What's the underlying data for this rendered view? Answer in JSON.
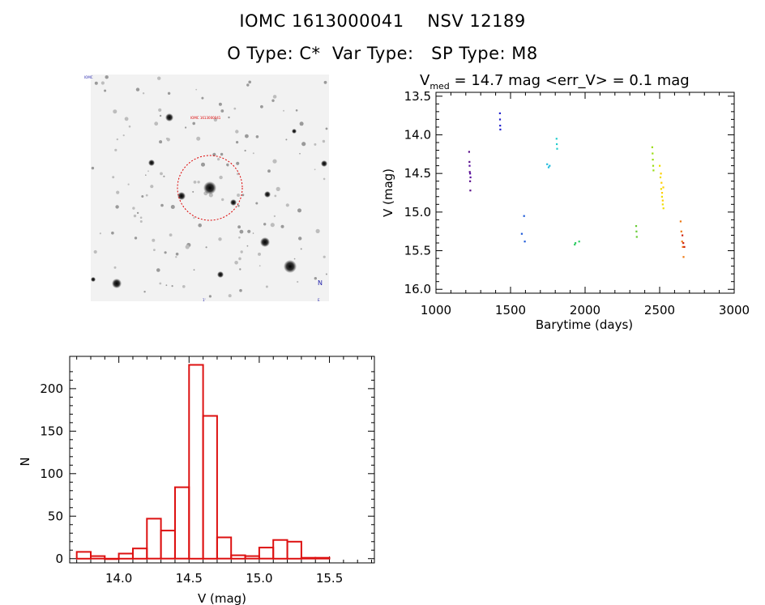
{
  "header": {
    "title_line1": "IOMC 1613000041    NSV 12189",
    "title_line2": "O Type: C*  Var Type:   SP Type: M8"
  },
  "finder_chart": {
    "target_label": "IOMC 1613000041",
    "corner_labels": [
      "IOMC",
      "N",
      "E",
      "1'"
    ]
  },
  "colors": {
    "histogram": "#dd1111",
    "circle": "#dd0000",
    "axis": "#000000"
  },
  "chart_data": [
    {
      "type": "scatter",
      "name": "light-curve",
      "title_prefix": "V",
      "title_subscript": "med",
      "title_rest": " = 14.7 mag <err_V> = 0.1 mag",
      "xlabel": "Barytime (days)",
      "ylabel": "V (mag)",
      "xlim": [
        1000,
        3000
      ],
      "ylim": [
        16.05,
        13.45
      ],
      "xticks": [
        1000,
        1500,
        2000,
        2500,
        3000
      ],
      "yticks": [
        13.5,
        14.0,
        14.5,
        15.0,
        15.5,
        16.0
      ],
      "ytick_labels": [
        "13.5",
        "14.0",
        "14.5",
        "15.0",
        "15.5",
        "16.0"
      ],
      "groups": [
        {
          "color": "#5a0f8a",
          "x": [
            1222,
            1224,
            1226,
            1228,
            1230
          ],
          "y": [
            14.22,
            14.35,
            14.48,
            14.6,
            14.72
          ]
        },
        {
          "color": "#5a0fa0",
          "x": [
            1225,
            1228,
            1231
          ],
          "y": [
            14.4,
            14.5,
            14.55
          ]
        },
        {
          "color": "#2222cc",
          "x": [
            1428,
            1429,
            1430,
            1431
          ],
          "y": [
            13.72,
            13.8,
            13.88,
            13.93
          ]
        },
        {
          "color": "#1e5ad8",
          "x": [
            1575,
            1590,
            1595
          ],
          "y": [
            15.28,
            15.05,
            15.38
          ]
        },
        {
          "color": "#22bbdd",
          "x": [
            1745,
            1755,
            1762
          ],
          "y": [
            14.38,
            14.42,
            14.4
          ]
        },
        {
          "color": "#22cccc",
          "x": [
            1808,
            1810,
            1812
          ],
          "y": [
            14.05,
            14.12,
            14.18
          ]
        },
        {
          "color": "#33cc66",
          "x": [
            1930,
            1935,
            1960
          ],
          "y": [
            15.42,
            15.4,
            15.38
          ]
        },
        {
          "color": "#66cc33",
          "x": [
            2342,
            2344,
            2346
          ],
          "y": [
            15.18,
            15.25,
            15.32
          ]
        },
        {
          "color": "#99dd11",
          "x": [
            2450,
            2452,
            2454,
            2456,
            2458
          ],
          "y": [
            14.16,
            14.24,
            14.32,
            14.4,
            14.46
          ]
        },
        {
          "color": "#eedd00",
          "x": [
            2500,
            2505,
            2510,
            2515,
            2520,
            2525
          ],
          "y": [
            14.4,
            14.55,
            14.7,
            14.8,
            14.9,
            14.95
          ]
        },
        {
          "color": "#ffcc00",
          "x": [
            2508,
            2512,
            2516,
            2520,
            2524
          ],
          "y": [
            14.5,
            14.62,
            14.75,
            14.85,
            14.68
          ]
        },
        {
          "color": "#ee7711",
          "x": [
            2640,
            2645,
            2650,
            2655,
            2660
          ],
          "y": [
            15.12,
            15.25,
            15.38,
            15.45,
            15.58
          ]
        },
        {
          "color": "#cc2211",
          "x": [
            2652,
            2658,
            2665
          ],
          "y": [
            15.3,
            15.4,
            15.45
          ]
        }
      ]
    },
    {
      "type": "bar",
      "name": "histogram",
      "xlabel": "V (mag)",
      "ylabel": "N",
      "xlim": [
        13.65,
        15.82
      ],
      "ylim": [
        -5,
        238
      ],
      "xticks": [
        14.0,
        14.5,
        15.0,
        15.5
      ],
      "xtick_labels": [
        "14.0",
        "14.5",
        "15.0",
        "15.5"
      ],
      "yticks": [
        0,
        50,
        100,
        150,
        200
      ],
      "ytick_labels": [
        "0",
        "50",
        "100",
        "150",
        "200"
      ],
      "bin_start": 13.7,
      "bin_width": 0.1,
      "values": [
        8,
        3,
        0,
        6,
        12,
        47,
        33,
        84,
        228,
        168,
        25,
        4,
        3,
        13,
        22,
        20,
        1,
        1
      ]
    }
  ]
}
